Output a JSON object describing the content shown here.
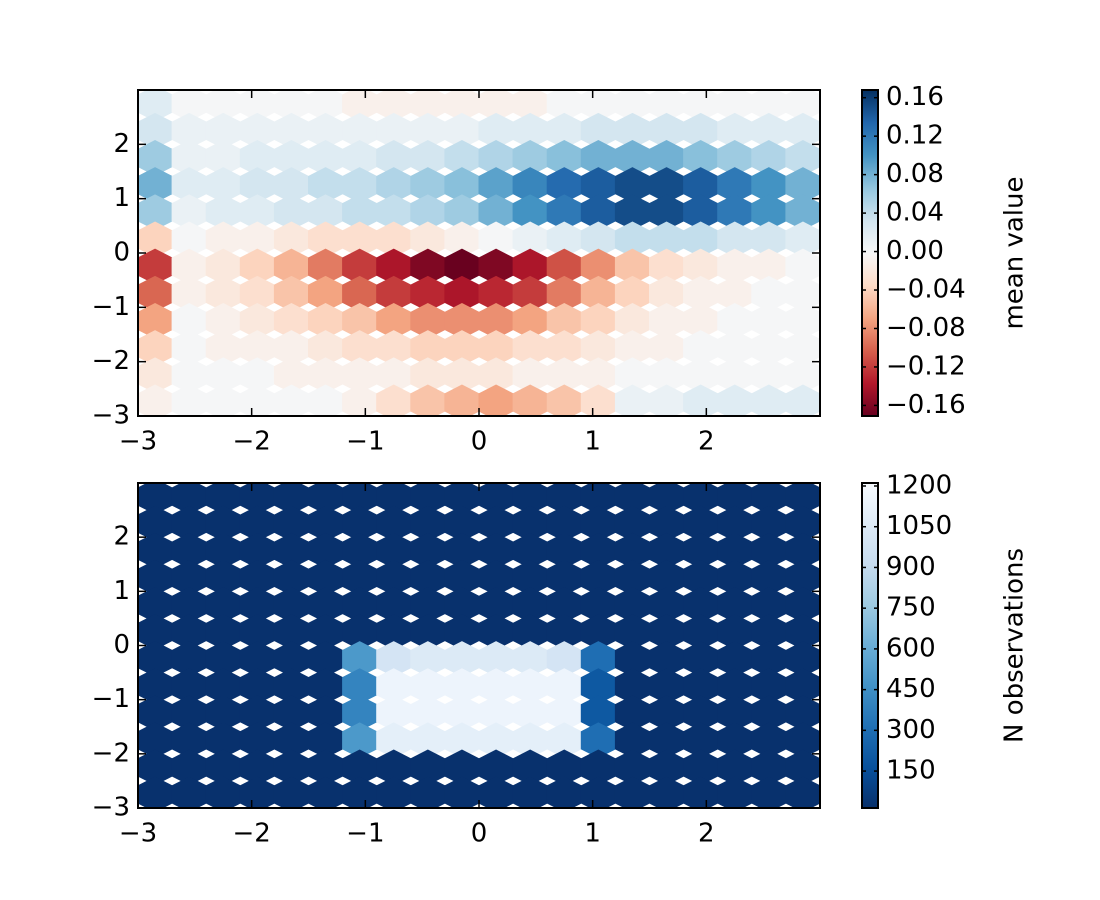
{
  "chart_data": [
    {
      "type": "hexbin",
      "x_centers": [
        -2.85,
        -2.55,
        -2.25,
        -1.95,
        -1.65,
        -1.35,
        -1.05,
        -0.75,
        -0.45,
        -0.15,
        0.15,
        0.45,
        0.75,
        1.05,
        1.35,
        1.65,
        1.95,
        2.25,
        2.55,
        2.85
      ],
      "y_centers": [
        2.75,
        2.25,
        1.75,
        1.25,
        0.75,
        0.25,
        -0.25,
        -0.75,
        -1.25,
        -1.75,
        -2.25,
        -2.75
      ],
      "values": [
        [
          0.02,
          0,
          0,
          0,
          0,
          0,
          -0.01,
          -0.01,
          -0.01,
          -0.01,
          -0.01,
          -0.01,
          0,
          0,
          0,
          0,
          0,
          0,
          0,
          0
        ],
        [
          0.03,
          0.01,
          0.01,
          0.01,
          0.01,
          0.01,
          0.01,
          0.01,
          0.01,
          0.01,
          0.02,
          0.02,
          0.02,
          0.03,
          0.03,
          0.03,
          0.03,
          0.02,
          0.02,
          0.02
        ],
        [
          0.06,
          0.01,
          0.01,
          0.02,
          0.02,
          0.02,
          0.02,
          0.03,
          0.03,
          0.04,
          0.05,
          0.06,
          0.07,
          0.08,
          0.08,
          0.08,
          0.07,
          0.06,
          0.05,
          0.04
        ],
        [
          0.08,
          0.02,
          0.02,
          0.03,
          0.03,
          0.04,
          0.04,
          0.05,
          0.06,
          0.07,
          0.09,
          0.11,
          0.13,
          0.14,
          0.15,
          0.15,
          0.14,
          0.12,
          0.1,
          0.08
        ],
        [
          0.06,
          0.01,
          0.02,
          0.02,
          0.03,
          0.03,
          0.04,
          0.04,
          0.05,
          0.06,
          0.08,
          0.1,
          0.12,
          0.14,
          0.15,
          0.15,
          0.14,
          0.12,
          0.1,
          0.08
        ],
        [
          -0.04,
          0,
          -0.01,
          -0.01,
          -0.02,
          -0.03,
          -0.03,
          -0.03,
          -0.02,
          -0.01,
          0,
          0.01,
          0.02,
          0.03,
          0.04,
          0.04,
          0.04,
          0.03,
          0.03,
          0.02
        ],
        [
          -0.12,
          -0.01,
          -0.02,
          -0.04,
          -0.06,
          -0.09,
          -0.12,
          -0.14,
          -0.16,
          -0.17,
          -0.16,
          -0.14,
          -0.11,
          -0.08,
          -0.05,
          -0.03,
          -0.02,
          -0.01,
          -0.01,
          0
        ],
        [
          -0.1,
          -0.01,
          -0.02,
          -0.03,
          -0.05,
          -0.07,
          -0.1,
          -0.12,
          -0.13,
          -0.14,
          -0.13,
          -0.12,
          -0.09,
          -0.06,
          -0.04,
          -0.02,
          -0.01,
          -0.01,
          0,
          0
        ],
        [
          -0.07,
          0,
          -0.01,
          -0.02,
          -0.03,
          -0.04,
          -0.05,
          -0.07,
          -0.08,
          -0.08,
          -0.08,
          -0.07,
          -0.05,
          -0.04,
          -0.02,
          -0.01,
          -0.01,
          0,
          0,
          0
        ],
        [
          -0.04,
          0,
          -0.01,
          -0.01,
          -0.01,
          -0.02,
          -0.03,
          -0.03,
          -0.04,
          -0.04,
          -0.04,
          -0.03,
          -0.03,
          -0.02,
          -0.01,
          -0.01,
          0,
          0,
          0,
          0
        ],
        [
          -0.02,
          0,
          0,
          0,
          -0.01,
          -0.01,
          -0.01,
          -0.01,
          -0.02,
          -0.02,
          -0.02,
          -0.01,
          -0.01,
          -0.01,
          0,
          0,
          0,
          0,
          0,
          0
        ],
        [
          -0.01,
          0,
          0,
          0,
          0,
          0,
          -0.01,
          -0.03,
          -0.05,
          -0.06,
          -0.07,
          -0.06,
          -0.05,
          -0.03,
          0.01,
          0.01,
          0.02,
          0.02,
          0.02,
          0.02
        ]
      ],
      "xlim": [
        -3,
        3
      ],
      "ylim": [
        -3,
        3
      ],
      "xticks": [
        {
          "value": -3,
          "label": "−3"
        },
        {
          "value": -2,
          "label": "−2"
        },
        {
          "value": -1,
          "label": "−1"
        },
        0,
        1,
        2
      ],
      "yticks": [
        {
          "value": -3,
          "label": "−3"
        },
        {
          "value": -2,
          "label": "−2"
        },
        {
          "value": -1,
          "label": "−1"
        },
        0,
        1,
        2
      ],
      "colorbar": {
        "label": "mean value",
        "lim": [
          -0.171,
          0.168
        ],
        "ticks": [
          {
            "value": -0.16,
            "label": "−0.16"
          },
          {
            "value": -0.12,
            "label": "−0.12"
          },
          {
            "value": -0.08,
            "label": "−0.08"
          },
          {
            "value": -0.04,
            "label": "−0.04"
          },
          {
            "value": 0,
            "label": "0.00"
          },
          0.04,
          0.08,
          0.12,
          0.16
        ],
        "colormap": [
          "#67001f",
          "#b2182b",
          "#d6604d",
          "#f4a582",
          "#fddbc7",
          "#f7f7f7",
          "#d1e5f0",
          "#92c5de",
          "#4393c3",
          "#2166ac",
          "#053061"
        ]
      }
    },
    {
      "type": "hexbin",
      "x_centers": [
        -2.85,
        -2.55,
        -2.25,
        -1.95,
        -1.65,
        -1.35,
        -1.05,
        -0.75,
        -0.45,
        -0.15,
        0.15,
        0.45,
        0.75,
        1.05,
        1.35,
        1.65,
        1.95,
        2.25,
        2.55,
        2.85
      ],
      "y_centers": [
        2.75,
        2.25,
        1.75,
        1.25,
        0.75,
        0.25,
        -0.25,
        -0.75,
        -1.25,
        -1.75,
        -2.25,
        -2.75
      ],
      "values": [
        [
          20,
          20,
          20,
          20,
          20,
          20,
          20,
          20,
          20,
          20,
          20,
          20,
          20,
          20,
          20,
          20,
          20,
          20,
          20,
          20
        ],
        [
          20,
          20,
          20,
          20,
          20,
          20,
          20,
          20,
          20,
          20,
          20,
          20,
          20,
          20,
          20,
          20,
          20,
          20,
          20,
          20
        ],
        [
          20,
          20,
          20,
          20,
          20,
          20,
          20,
          20,
          20,
          20,
          20,
          20,
          20,
          20,
          20,
          20,
          20,
          20,
          20,
          20
        ],
        [
          20,
          20,
          20,
          20,
          20,
          20,
          20,
          20,
          20,
          20,
          20,
          20,
          20,
          20,
          20,
          20,
          20,
          20,
          20,
          20
        ],
        [
          20,
          20,
          20,
          20,
          20,
          20,
          20,
          20,
          20,
          20,
          20,
          20,
          20,
          20,
          20,
          20,
          20,
          20,
          20,
          20
        ],
        [
          20,
          20,
          20,
          20,
          20,
          20,
          20,
          20,
          20,
          20,
          20,
          20,
          20,
          20,
          20,
          20,
          20,
          20,
          20,
          20
        ],
        [
          20,
          20,
          20,
          20,
          20,
          20,
          500,
          1000,
          1050,
          1050,
          1050,
          1050,
          1000,
          300,
          20,
          20,
          20,
          20,
          20,
          20
        ],
        [
          20,
          20,
          20,
          20,
          20,
          20,
          400,
          1150,
          1150,
          1150,
          1150,
          1150,
          1150,
          200,
          20,
          20,
          20,
          20,
          20,
          20
        ],
        [
          20,
          20,
          20,
          20,
          20,
          20,
          400,
          1150,
          1150,
          1150,
          1150,
          1150,
          1150,
          200,
          20,
          20,
          20,
          20,
          20,
          20
        ],
        [
          20,
          20,
          20,
          20,
          20,
          20,
          500,
          1100,
          1100,
          1100,
          1100,
          1100,
          1100,
          300,
          20,
          20,
          20,
          20,
          20,
          20
        ],
        [
          20,
          20,
          20,
          20,
          20,
          20,
          20,
          20,
          20,
          20,
          20,
          20,
          20,
          20,
          20,
          20,
          20,
          20,
          20,
          20
        ],
        [
          20,
          20,
          20,
          20,
          20,
          20,
          20,
          20,
          20,
          20,
          20,
          20,
          20,
          20,
          20,
          20,
          20,
          20,
          20,
          20
        ]
      ],
      "xlim": [
        -3,
        3
      ],
      "ylim": [
        -3,
        3
      ],
      "xticks": [
        {
          "value": -3,
          "label": "−3"
        },
        {
          "value": -2,
          "label": "−2"
        },
        {
          "value": -1,
          "label": "−1"
        },
        0,
        1,
        2
      ],
      "yticks": [
        {
          "value": -3,
          "label": "−3"
        },
        {
          "value": -2,
          "label": "−2"
        },
        {
          "value": -1,
          "label": "−1"
        },
        0,
        1,
        2
      ],
      "colorbar": {
        "label": "N observations",
        "lim": [
          14,
          1211
        ],
        "ticks": [
          150,
          300,
          450,
          600,
          750,
          900,
          1050,
          1200
        ],
        "colormap": [
          "#08306b",
          "#08519c",
          "#2171b5",
          "#4292c6",
          "#6baed6",
          "#9ecae1",
          "#c6dbef",
          "#deebf7",
          "#f7fbff"
        ]
      }
    }
  ]
}
